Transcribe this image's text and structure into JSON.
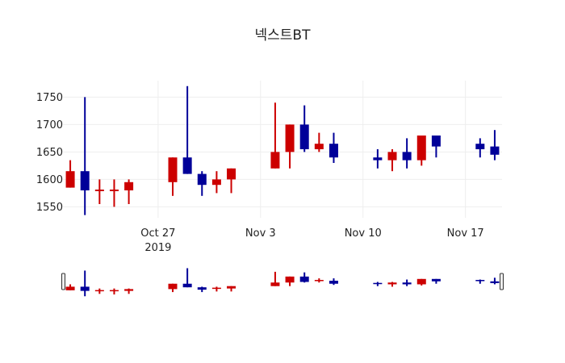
{
  "chart_data": {
    "type": "candlestick",
    "title": "넥스트BT",
    "xlabel": "",
    "ylabel": "",
    "ylim": [
      1530,
      1780
    ],
    "y_ticks": [
      1550,
      1600,
      1650,
      1700,
      1750
    ],
    "x_ticks": [
      {
        "date": "2019-10-27",
        "label": "Oct 27",
        "sublabel": "2019"
      },
      {
        "date": "2019-11-03",
        "label": "Nov 3",
        "sublabel": ""
      },
      {
        "date": "2019-11-10",
        "label": "Nov 10",
        "sublabel": ""
      },
      {
        "date": "2019-11-17",
        "label": "Nov 17",
        "sublabel": ""
      }
    ],
    "xlim": [
      "2019-10-20T12:00",
      "2019-11-19T12:00"
    ],
    "grid": true,
    "rangeslider": true,
    "increasing_color": "#cc0000",
    "decreasing_color": "#000099",
    "candles": [
      {
        "date": "2019-10-21",
        "open": 1585,
        "high": 1635,
        "low": 1585,
        "close": 1615
      },
      {
        "date": "2019-10-22",
        "open": 1615,
        "high": 1750,
        "low": 1535,
        "close": 1580
      },
      {
        "date": "2019-10-23",
        "open": 1580,
        "high": 1600,
        "low": 1555,
        "close": 1580
      },
      {
        "date": "2019-10-24",
        "open": 1580,
        "high": 1600,
        "low": 1550,
        "close": 1580
      },
      {
        "date": "2019-10-25",
        "open": 1580,
        "high": 1600,
        "low": 1555,
        "close": 1595
      },
      {
        "date": "2019-10-28",
        "open": 1595,
        "high": 1640,
        "low": 1570,
        "close": 1640
      },
      {
        "date": "2019-10-29",
        "open": 1640,
        "high": 1770,
        "low": 1610,
        "close": 1610
      },
      {
        "date": "2019-10-30",
        "open": 1610,
        "high": 1615,
        "low": 1570,
        "close": 1590
      },
      {
        "date": "2019-10-31",
        "open": 1590,
        "high": 1615,
        "low": 1575,
        "close": 1600
      },
      {
        "date": "2019-11-01",
        "open": 1600,
        "high": 1620,
        "low": 1575,
        "close": 1620
      },
      {
        "date": "2019-11-04",
        "open": 1620,
        "high": 1740,
        "low": 1620,
        "close": 1650
      },
      {
        "date": "2019-11-05",
        "open": 1650,
        "high": 1700,
        "low": 1620,
        "close": 1700
      },
      {
        "date": "2019-11-06",
        "open": 1700,
        "high": 1735,
        "low": 1650,
        "close": 1655
      },
      {
        "date": "2019-11-07",
        "open": 1655,
        "high": 1685,
        "low": 1650,
        "close": 1665
      },
      {
        "date": "2019-11-08",
        "open": 1665,
        "high": 1685,
        "low": 1630,
        "close": 1640
      },
      {
        "date": "2019-11-11",
        "open": 1640,
        "high": 1655,
        "low": 1620,
        "close": 1635
      },
      {
        "date": "2019-11-12",
        "open": 1635,
        "high": 1655,
        "low": 1615,
        "close": 1650
      },
      {
        "date": "2019-11-13",
        "open": 1650,
        "high": 1675,
        "low": 1620,
        "close": 1635
      },
      {
        "date": "2019-11-14",
        "open": 1635,
        "high": 1680,
        "low": 1625,
        "close": 1680
      },
      {
        "date": "2019-11-15",
        "open": 1680,
        "high": 1680,
        "low": 1640,
        "close": 1660
      },
      {
        "date": "2019-11-18",
        "open": 1665,
        "high": 1675,
        "low": 1640,
        "close": 1655
      },
      {
        "date": "2019-11-19",
        "open": 1660,
        "high": 1690,
        "low": 1635,
        "close": 1645
      }
    ]
  }
}
